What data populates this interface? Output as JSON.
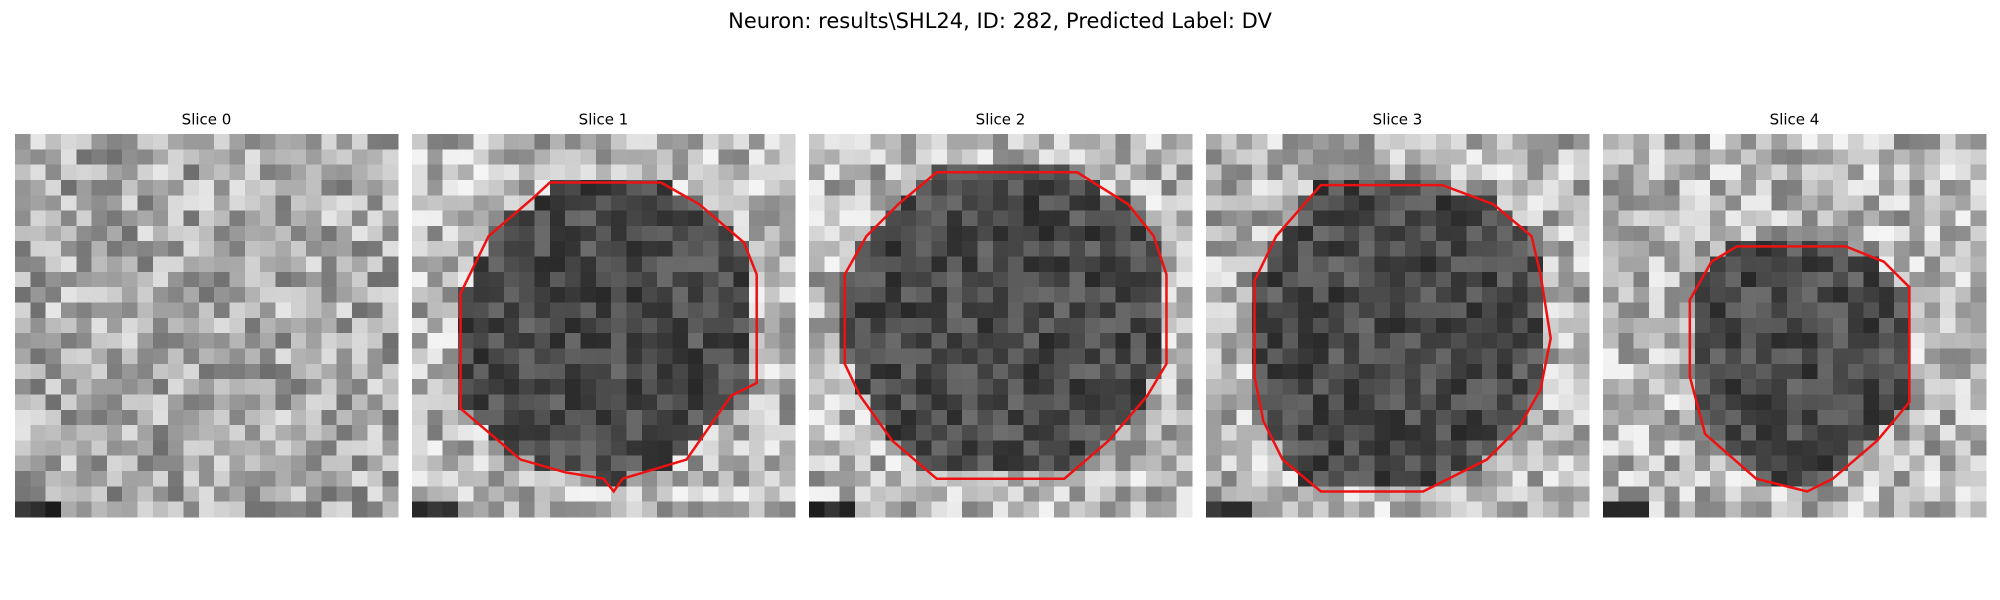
{
  "title": "Neuron: results\\SHL24, ID: 282, Predicted Label: DV",
  "panels": [
    {
      "title": "Slice 0"
    },
    {
      "title": "Slice 1"
    },
    {
      "title": "Slice 2"
    },
    {
      "title": "Slice 3"
    },
    {
      "title": "Slice 4"
    }
  ]
}
